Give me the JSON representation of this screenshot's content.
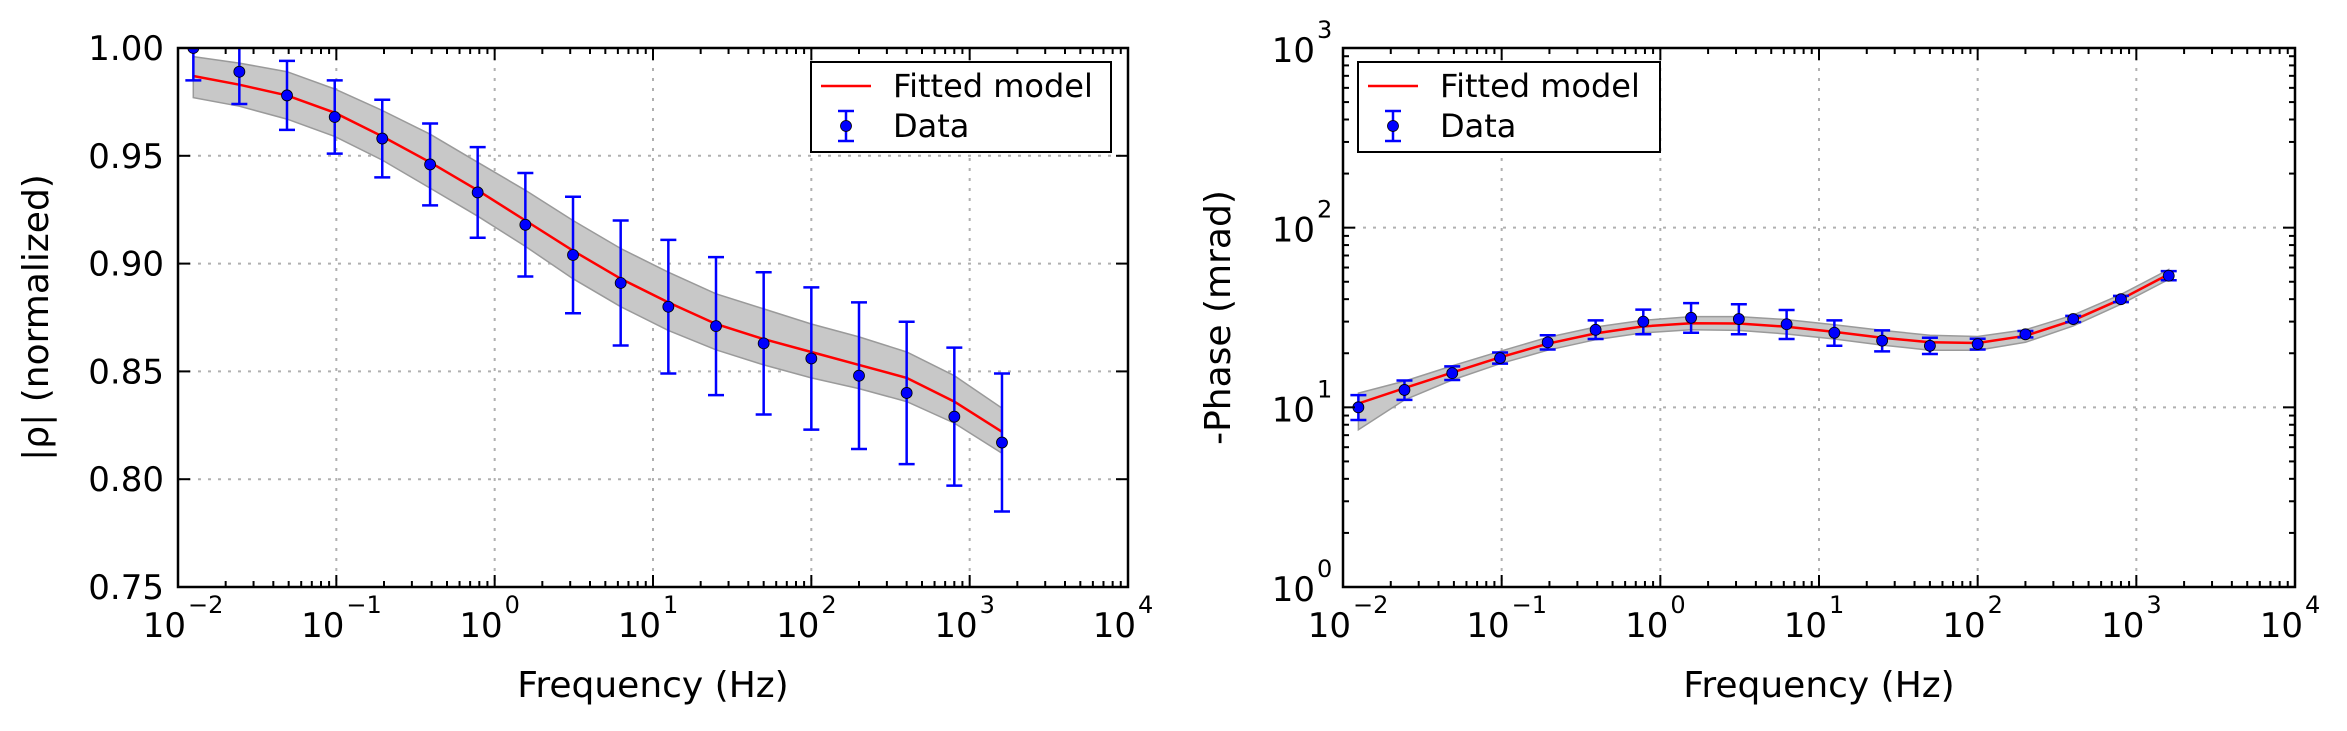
{
  "chart_data": [
    {
      "type": "line",
      "xlabel": "Frequency (Hz)",
      "ylabel": "|ρ| (normalized)",
      "xscale": "log",
      "yscale": "linear",
      "xlim": [
        0.01,
        10000
      ],
      "ylim": [
        0.75,
        1.0
      ],
      "grid": true,
      "legend_position": "top-right",
      "x_ticks": [
        0.01,
        0.1,
        1,
        10,
        100,
        1000,
        10000
      ],
      "x_tick_labels": [
        {
          "base": "10",
          "exp": "−2"
        },
        {
          "base": "10",
          "exp": "−1"
        },
        {
          "base": "10",
          "exp": "0"
        },
        {
          "base": "10",
          "exp": "1"
        },
        {
          "base": "10",
          "exp": "2"
        },
        {
          "base": "10",
          "exp": "3"
        },
        {
          "base": "10",
          "exp": "4"
        }
      ],
      "y_ticks": [
        0.75,
        0.8,
        0.85,
        0.9,
        0.95,
        1.0
      ],
      "y_tick_labels": [
        "0.75",
        "0.80",
        "0.85",
        "0.90",
        "0.95",
        "1.00"
      ],
      "series": [
        {
          "name": "Fitted model",
          "kind": "line",
          "color": "#ff0000",
          "x": [
            0.0125,
            0.0244,
            0.0488,
            0.0977,
            0.195,
            0.391,
            0.781,
            1.5625,
            3.125,
            6.25,
            12.5,
            25,
            50,
            100,
            200,
            400,
            800,
            1600
          ],
          "y": [
            0.987,
            0.983,
            0.978,
            0.97,
            0.959,
            0.947,
            0.934,
            0.92,
            0.906,
            0.893,
            0.882,
            0.872,
            0.865,
            0.859,
            0.853,
            0.847,
            0.836,
            0.822
          ],
          "band_upper": [
            0.996,
            0.993,
            0.989,
            0.981,
            0.971,
            0.96,
            0.947,
            0.934,
            0.92,
            0.907,
            0.896,
            0.886,
            0.879,
            0.872,
            0.866,
            0.859,
            0.848,
            0.833
          ],
          "band_lower": [
            0.977,
            0.973,
            0.967,
            0.959,
            0.948,
            0.935,
            0.922,
            0.908,
            0.893,
            0.88,
            0.869,
            0.86,
            0.853,
            0.847,
            0.842,
            0.836,
            0.826,
            0.812
          ],
          "band_color": "#c8c8c8"
        },
        {
          "name": "Data",
          "kind": "errorbar",
          "color": "#0000ff",
          "x": [
            0.0125,
            0.0244,
            0.0488,
            0.0977,
            0.195,
            0.391,
            0.781,
            1.5625,
            3.125,
            6.25,
            12.5,
            25,
            50,
            100,
            200,
            400,
            800,
            1600
          ],
          "y": [
            1.0,
            0.989,
            0.978,
            0.968,
            0.958,
            0.946,
            0.933,
            0.918,
            0.904,
            0.891,
            0.88,
            0.871,
            0.863,
            0.856,
            0.848,
            0.84,
            0.829,
            0.817
          ],
          "err": [
            0.015,
            0.015,
            0.016,
            0.017,
            0.018,
            0.019,
            0.021,
            0.024,
            0.027,
            0.029,
            0.031,
            0.032,
            0.033,
            0.033,
            0.034,
            0.033,
            0.032,
            0.032
          ]
        }
      ]
    },
    {
      "type": "line",
      "xlabel": "Frequency (Hz)",
      "ylabel": "-Phase (mrad)",
      "xscale": "log",
      "yscale": "log",
      "xlim": [
        0.01,
        10000
      ],
      "ylim": [
        1,
        1000
      ],
      "grid": true,
      "legend_position": "top-left",
      "x_ticks": [
        0.01,
        0.1,
        1,
        10,
        100,
        1000,
        10000
      ],
      "x_tick_labels": [
        {
          "base": "10",
          "exp": "−2"
        },
        {
          "base": "10",
          "exp": "−1"
        },
        {
          "base": "10",
          "exp": "0"
        },
        {
          "base": "10",
          "exp": "1"
        },
        {
          "base": "10",
          "exp": "2"
        },
        {
          "base": "10",
          "exp": "3"
        },
        {
          "base": "10",
          "exp": "4"
        }
      ],
      "y_ticks": [
        1,
        10,
        100,
        1000
      ],
      "y_tick_labels": [
        {
          "base": "10",
          "exp": "0"
        },
        {
          "base": "10",
          "exp": "1"
        },
        {
          "base": "10",
          "exp": "2"
        },
        {
          "base": "10",
          "exp": "3"
        }
      ],
      "series": [
        {
          "name": "Fitted model",
          "kind": "line",
          "color": "#ff0000",
          "x": [
            0.0125,
            0.0244,
            0.0488,
            0.0977,
            0.195,
            0.391,
            0.781,
            1.5625,
            3.125,
            6.25,
            12.5,
            25,
            50,
            100,
            200,
            400,
            800,
            1600
          ],
          "y": [
            10.5,
            12.8,
            15.6,
            19.0,
            22.6,
            25.8,
            28.2,
            29.4,
            29.3,
            28.1,
            26.3,
            24.4,
            23.0,
            22.8,
            25.0,
            30.5,
            40.0,
            55.0
          ],
          "band_upper": [
            12.0,
            14.0,
            17.0,
            20.5,
            24.5,
            28.0,
            30.5,
            32.0,
            32.0,
            30.8,
            28.8,
            26.8,
            25.2,
            24.8,
            27.0,
            32.6,
            42.5,
            58.5
          ],
          "band_lower": [
            7.5,
            11.0,
            14.2,
            17.5,
            20.8,
            23.8,
            26.0,
            27.0,
            26.8,
            25.6,
            24.0,
            22.2,
            20.8,
            20.8,
            23.0,
            28.4,
            37.5,
            51.5
          ],
          "band_color": "#c8c8c8"
        },
        {
          "name": "Data",
          "kind": "errorbar",
          "color": "#0000ff",
          "x": [
            0.0125,
            0.0244,
            0.0488,
            0.0977,
            0.195,
            0.391,
            0.781,
            1.5625,
            3.125,
            6.25,
            12.5,
            25,
            50,
            100,
            200,
            400,
            800,
            1600
          ],
          "y": [
            10.0,
            12.5,
            15.5,
            18.8,
            23.0,
            27.0,
            30.0,
            31.5,
            31.0,
            29.0,
            26.0,
            23.5,
            22.0,
            22.5,
            25.5,
            31.0,
            40.0,
            54.0
          ],
          "err_lower": [
            1.5,
            1.5,
            1.3,
            1.3,
            2.0,
            3.0,
            4.5,
            5.5,
            5.5,
            5.0,
            4.0,
            3.0,
            2.2,
            1.5,
            1.0,
            1.2,
            1.5,
            3.0
          ],
          "err_upper": [
            1.7,
            1.6,
            1.4,
            1.4,
            2.2,
            3.5,
            5.0,
            6.5,
            6.5,
            5.8,
            4.5,
            3.3,
            2.4,
            1.6,
            1.1,
            1.3,
            1.7,
            3.3
          ]
        }
      ]
    }
  ]
}
